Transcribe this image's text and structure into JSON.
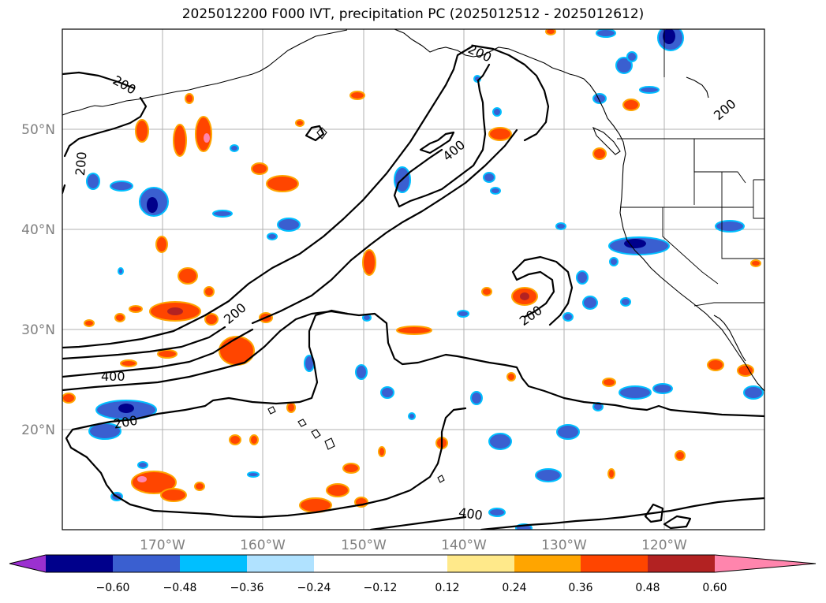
{
  "title": "2025012200 F000 IVT, precipitation PC (2025012512 - 2025012612)",
  "latitude_labels": [
    "50°N",
    "40°N",
    "30°N",
    "20°N"
  ],
  "longitude_labels": [
    "170°W",
    "160°W",
    "150°W",
    "140°W",
    "130°W",
    "120°W"
  ],
  "ivt_contour_labels": [
    "200",
    "200",
    "200",
    "200",
    "200",
    "200",
    "200",
    "400",
    "400",
    "400"
  ],
  "colorbar": {
    "tick_labels": [
      "−0.60",
      "−0.48",
      "−0.36",
      "−0.24",
      "−0.12",
      "0.12",
      "0.24",
      "0.36",
      "0.48",
      "0.60"
    ],
    "colors": [
      "#9b30d0",
      "#00008b",
      "#3a5fd0",
      "#00bfff",
      "#b0e2ff",
      "#ffffff",
      "#ffe98a",
      "#ffa500",
      "#ff4500",
      "#b22222",
      "#ff85ad"
    ]
  },
  "chart_data": {
    "type": "map",
    "extent": {
      "lon": [
        -180,
        -110
      ],
      "lat": [
        10,
        60
      ]
    },
    "projection": "plate-carree",
    "gridlines": true,
    "fields": [
      "IVT contours (200, 400)",
      "precipitation PC filled contours"
    ],
    "contour_levels": [
      200,
      400
    ],
    "colorbar_levels": [
      -0.6,
      -0.48,
      -0.36,
      -0.24,
      -0.12,
      0.12,
      0.24,
      0.36,
      0.48,
      0.6
    ]
  }
}
